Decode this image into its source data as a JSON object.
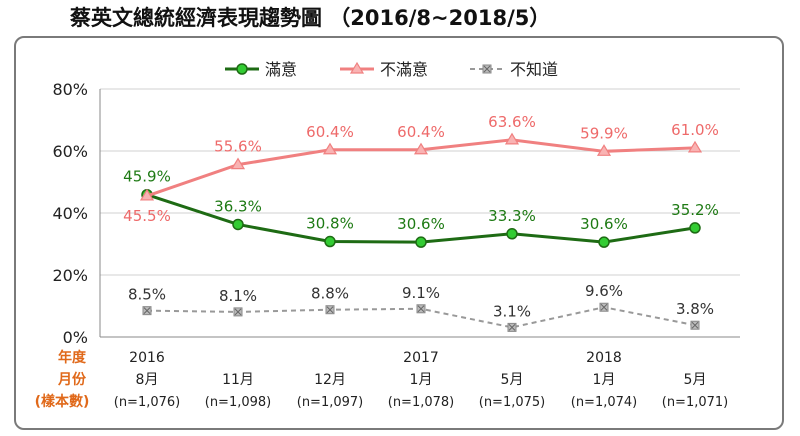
{
  "chart_data": {
    "type": "line",
    "title": "蔡英文總統經濟表現趨勢圖 （2016/8~2018/5）",
    "ylim": [
      0,
      80
    ],
    "yticks": [
      "0%",
      "20%",
      "40%",
      "60%",
      "80%"
    ],
    "row_labels": {
      "year": "年度",
      "month": "月份",
      "sample": "(樣本數)"
    },
    "years": [
      "2016",
      "",
      "",
      "2017",
      "",
      "2018",
      ""
    ],
    "months": [
      "8月",
      "11月",
      "12月",
      "1月",
      "5月",
      "1月",
      "5月"
    ],
    "samples": [
      "(n=1,076)",
      "(n=1,098)",
      "(n=1,097)",
      "(n=1,078)",
      "(n=1,075)",
      "(n=1,074)",
      "(n=1,071)"
    ],
    "grid": true,
    "legend_position": "top-center",
    "series": [
      {
        "name": "滿意",
        "values": [
          45.9,
          36.3,
          30.8,
          30.6,
          33.3,
          30.6,
          35.2
        ],
        "labels": [
          "45.9%",
          "36.3%",
          "30.8%",
          "30.6%",
          "33.3%",
          "30.6%",
          "35.2%"
        ],
        "color": "#1e6b14",
        "marker_fill": "#33cc33",
        "marker": "circle",
        "dashed": false
      },
      {
        "name": "不滿意",
        "values": [
          45.5,
          55.6,
          60.4,
          60.4,
          63.6,
          59.9,
          61.0
        ],
        "labels": [
          "45.5%",
          "55.6%",
          "60.4%",
          "60.4%",
          "63.6%",
          "59.9%",
          "61.0%"
        ],
        "color": "#f08080",
        "marker_fill": "#f9b3b3",
        "marker": "triangle",
        "dashed": false
      },
      {
        "name": "不知道",
        "values": [
          8.5,
          8.1,
          8.8,
          9.1,
          3.1,
          9.6,
          3.8
        ],
        "labels": [
          "8.5%",
          "8.1%",
          "8.8%",
          "9.1%",
          "3.1%",
          "9.6%",
          "3.8%"
        ],
        "color": "#999999",
        "marker_fill": "#bbbbbb",
        "marker": "square-x",
        "dashed": true
      }
    ]
  }
}
